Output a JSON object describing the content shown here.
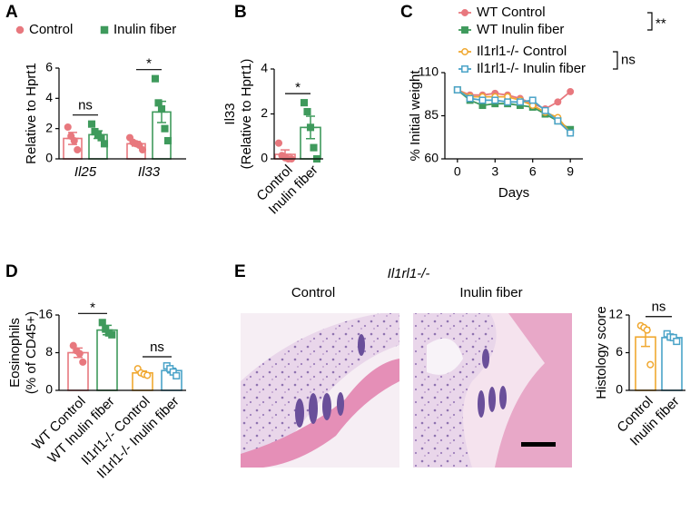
{
  "panel_labels": [
    "A",
    "B",
    "C",
    "D",
    "E"
  ],
  "histology": {
    "title": "Il1rl1-/-",
    "images": [
      "Control",
      "Inulin fiber"
    ]
  },
  "chart_data": [
    {
      "type": "bar",
      "ylabel": [
        "Relative to Hprt1"
      ],
      "categories": [
        "Il25",
        "Il33"
      ],
      "legend": true,
      "ylim": [
        0,
        6
      ],
      "yticks": [
        0,
        2,
        4,
        6
      ],
      "series": [
        {
          "name": "Control",
          "color": "#e8787e",
          "marker": "circle",
          "filled": true,
          "values": [
            1.35,
            1.0
          ],
          "errors": [
            0.4,
            0.15
          ],
          "points": [
            [
              2.1,
              1.5,
              1.2,
              0.6
            ],
            [
              1.4,
              1.1,
              1.0,
              0.9,
              0.6
            ]
          ]
        },
        {
          "name": "Inulin fiber",
          "color": "#3f9a5c",
          "marker": "square",
          "filled": true,
          "values": [
            1.6,
            3.1
          ],
          "errors": [
            0.25,
            0.7
          ],
          "points": [
            [
              2.3,
              1.8,
              1.6,
              1.4,
              1.0
            ],
            [
              5.3,
              3.7,
              3.3,
              2.0,
              1.2
            ]
          ]
        }
      ],
      "annotations": [
        {
          "text": "ns",
          "category": 0
        },
        {
          "text": "*",
          "category": 1
        }
      ]
    },
    {
      "type": "bar",
      "ylabel": [
        "Il33",
        "(Relative to Hprt1)"
      ],
      "categories": [
        "Control",
        "Inulin fiber"
      ],
      "label_rotation": 45,
      "ylim": [
        0,
        4
      ],
      "yticks": [
        0,
        2,
        4
      ],
      "colors": [
        "#e8787e",
        "#3f9a5c"
      ],
      "markers": [
        "circle",
        "square"
      ],
      "filled": [
        true,
        true
      ],
      "values": [
        0.2,
        1.4
      ],
      "errors": [
        0.2,
        0.5
      ],
      "points": [
        [
          0.7,
          0.15,
          0.05,
          0.0,
          0.0
        ],
        [
          2.5,
          2.1,
          1.4,
          0.5,
          0.0
        ]
      ],
      "annotations": [
        {
          "text": "*",
          "bars": [
            0,
            1
          ]
        }
      ]
    },
    {
      "type": "line",
      "xlabel": "Days",
      "ylabel": "% Initial weight",
      "x": [
        0,
        1,
        2,
        3,
        4,
        5,
        6,
        7,
        8,
        9
      ],
      "xlim": [
        -1,
        10
      ],
      "xticks": [
        0,
        3,
        6,
        9
      ],
      "ylim": [
        60,
        110
      ],
      "yticks": [
        60,
        85,
        110
      ],
      "series": [
        {
          "name": "WT Control",
          "color": "#e8787e",
          "marker": "circle",
          "filled": true,
          "values": [
            100,
            97,
            97,
            98,
            97,
            95,
            92,
            89,
            93,
            99
          ]
        },
        {
          "name": "WT Inulin fiber",
          "color": "#3f9a5c",
          "marker": "square",
          "filled": true,
          "values": [
            100,
            94,
            91,
            92,
            92,
            91,
            90,
            86,
            82,
            77
          ]
        },
        {
          "name": "Il1rl1-/- Control",
          "color": "#f0a830",
          "marker": "circle",
          "filled": false,
          "values": [
            100,
            96,
            96,
            96,
            96,
            94,
            91,
            87,
            84,
            75
          ]
        },
        {
          "name": "Il1rl1-/- Inulin fiber",
          "color": "#4aa3c8",
          "marker": "square",
          "filled": false,
          "values": [
            100,
            95,
            94,
            94,
            93,
            93,
            94,
            88,
            82,
            75
          ]
        }
      ],
      "annotations": [
        {
          "text": "**",
          "series": [
            0,
            1
          ]
        },
        {
          "text": "ns",
          "series": [
            2,
            3
          ]
        }
      ]
    },
    {
      "type": "bar",
      "ylabel": [
        "Eosinophils",
        "(% of CD45+)"
      ],
      "label_rotation": 45,
      "categories": [
        "WT Control",
        "WT Inulin fiber",
        "Il1rl1-/- Control",
        "Il1rl1-/- Inulin fiber"
      ],
      "ylim": [
        0,
        16
      ],
      "yticks": [
        0,
        8,
        16
      ],
      "colors": [
        "#e8787e",
        "#3f9a5c",
        "#f0a830",
        "#4aa3c8"
      ],
      "markers": [
        "circle",
        "square",
        "circle",
        "square"
      ],
      "filled": [
        true,
        true,
        false,
        false
      ],
      "values": [
        8.0,
        12.8,
        3.7,
        4.2
      ],
      "errors": [
        1.0,
        1.0,
        0.4,
        0.5
      ],
      "points": [
        [
          9.5,
          8.4,
          7.8,
          6.0
        ],
        [
          14.4,
          13.0,
          12.2,
          11.8
        ],
        [
          4.6,
          3.7,
          3.4,
          3.2
        ],
        [
          5.2,
          4.6,
          3.9,
          3.1
        ]
      ],
      "annotations": [
        {
          "text": "*",
          "bars": [
            0,
            1
          ]
        },
        {
          "text": "ns",
          "bars": [
            2,
            3
          ]
        }
      ]
    },
    {
      "type": "bar",
      "ylabel": [
        "Histology score"
      ],
      "categories": [
        "Control",
        "Inulin fiber"
      ],
      "label_rotation": 45,
      "ylim": [
        0,
        12
      ],
      "yticks": [
        0,
        6,
        12
      ],
      "colors": [
        "#f0a830",
        "#4aa3c8"
      ],
      "markers": [
        "circle",
        "square"
      ],
      "filled": [
        false,
        false
      ],
      "values": [
        8.5,
        8.4
      ],
      "errors": [
        1.5,
        0.4
      ],
      "points": [
        [
          10.3,
          10.0,
          9.6,
          4.1
        ],
        [
          9.0,
          8.5,
          8.4,
          7.8
        ]
      ],
      "annotations": [
        {
          "text": "ns",
          "bars": [
            0,
            1
          ]
        }
      ]
    }
  ]
}
